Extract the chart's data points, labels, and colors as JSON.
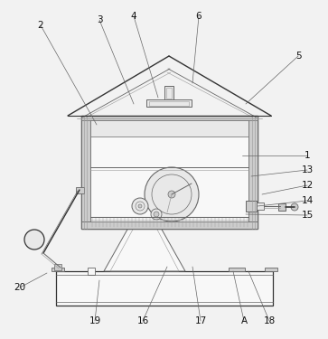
{
  "bg_color": "#f2f2f2",
  "line_color": "#666666",
  "line_color_dark": "#333333",
  "line_color_light": "#999999",
  "fill_gray": "#cccccc",
  "fill_light": "#e8e8e8",
  "fill_white": "#f8f8f8",
  "leaders": [
    [
      "2",
      45,
      28,
      107,
      138
    ],
    [
      "3",
      110,
      22,
      148,
      115
    ],
    [
      "4",
      148,
      18,
      175,
      108
    ],
    [
      "6",
      220,
      18,
      213,
      92
    ],
    [
      "5",
      330,
      62,
      272,
      115
    ],
    [
      "1",
      340,
      172,
      268,
      172
    ],
    [
      "13",
      340,
      188,
      278,
      195
    ],
    [
      "12",
      340,
      205,
      290,
      215
    ],
    [
      "14",
      340,
      222,
      285,
      228
    ],
    [
      "15",
      340,
      238,
      272,
      237
    ],
    [
      "16",
      158,
      355,
      185,
      295
    ],
    [
      "17",
      222,
      355,
      213,
      295
    ],
    [
      "A",
      270,
      355,
      258,
      300
    ],
    [
      "18",
      298,
      355,
      275,
      300
    ],
    [
      "19",
      105,
      355,
      110,
      310
    ],
    [
      "20",
      22,
      318,
      52,
      302
    ]
  ]
}
